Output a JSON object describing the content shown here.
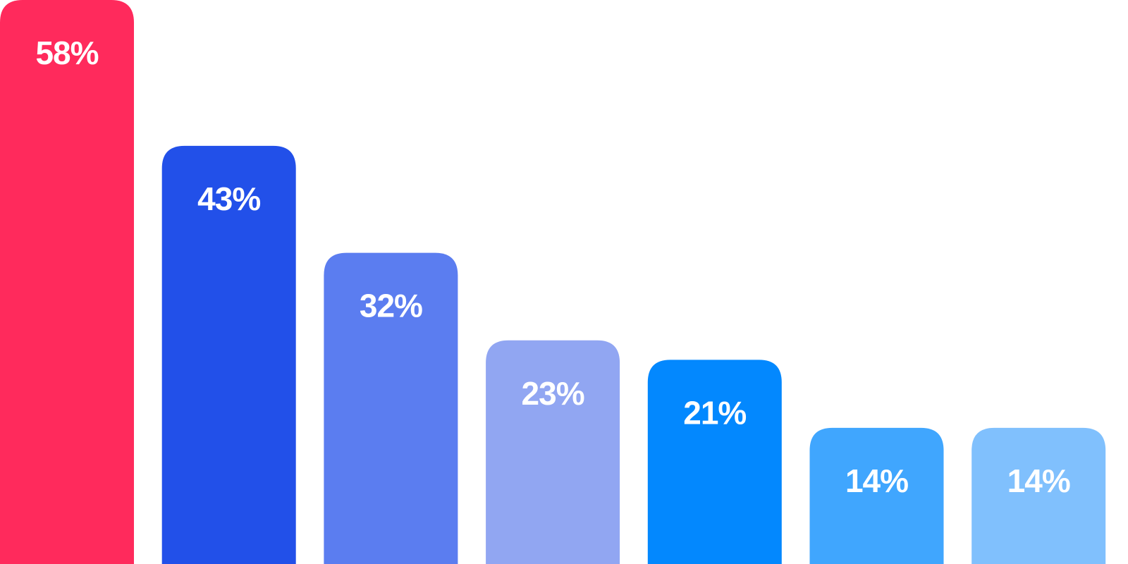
{
  "chart_data": {
    "type": "bar",
    "title": "",
    "xlabel": "",
    "ylabel": "",
    "grid": false,
    "legend": false,
    "ylim": [
      0,
      58
    ],
    "values": [
      58,
      43,
      32,
      23,
      21,
      14,
      14
    ],
    "labels": [
      "58%",
      "43%",
      "32%",
      "23%",
      "21%",
      "14%",
      "14%"
    ],
    "colors": [
      "#ff2a5c",
      "#2250e9",
      "#5b7df0",
      "#91a6f2",
      "#0388fe",
      "#40a6fe",
      "#80c0fd"
    ]
  }
}
